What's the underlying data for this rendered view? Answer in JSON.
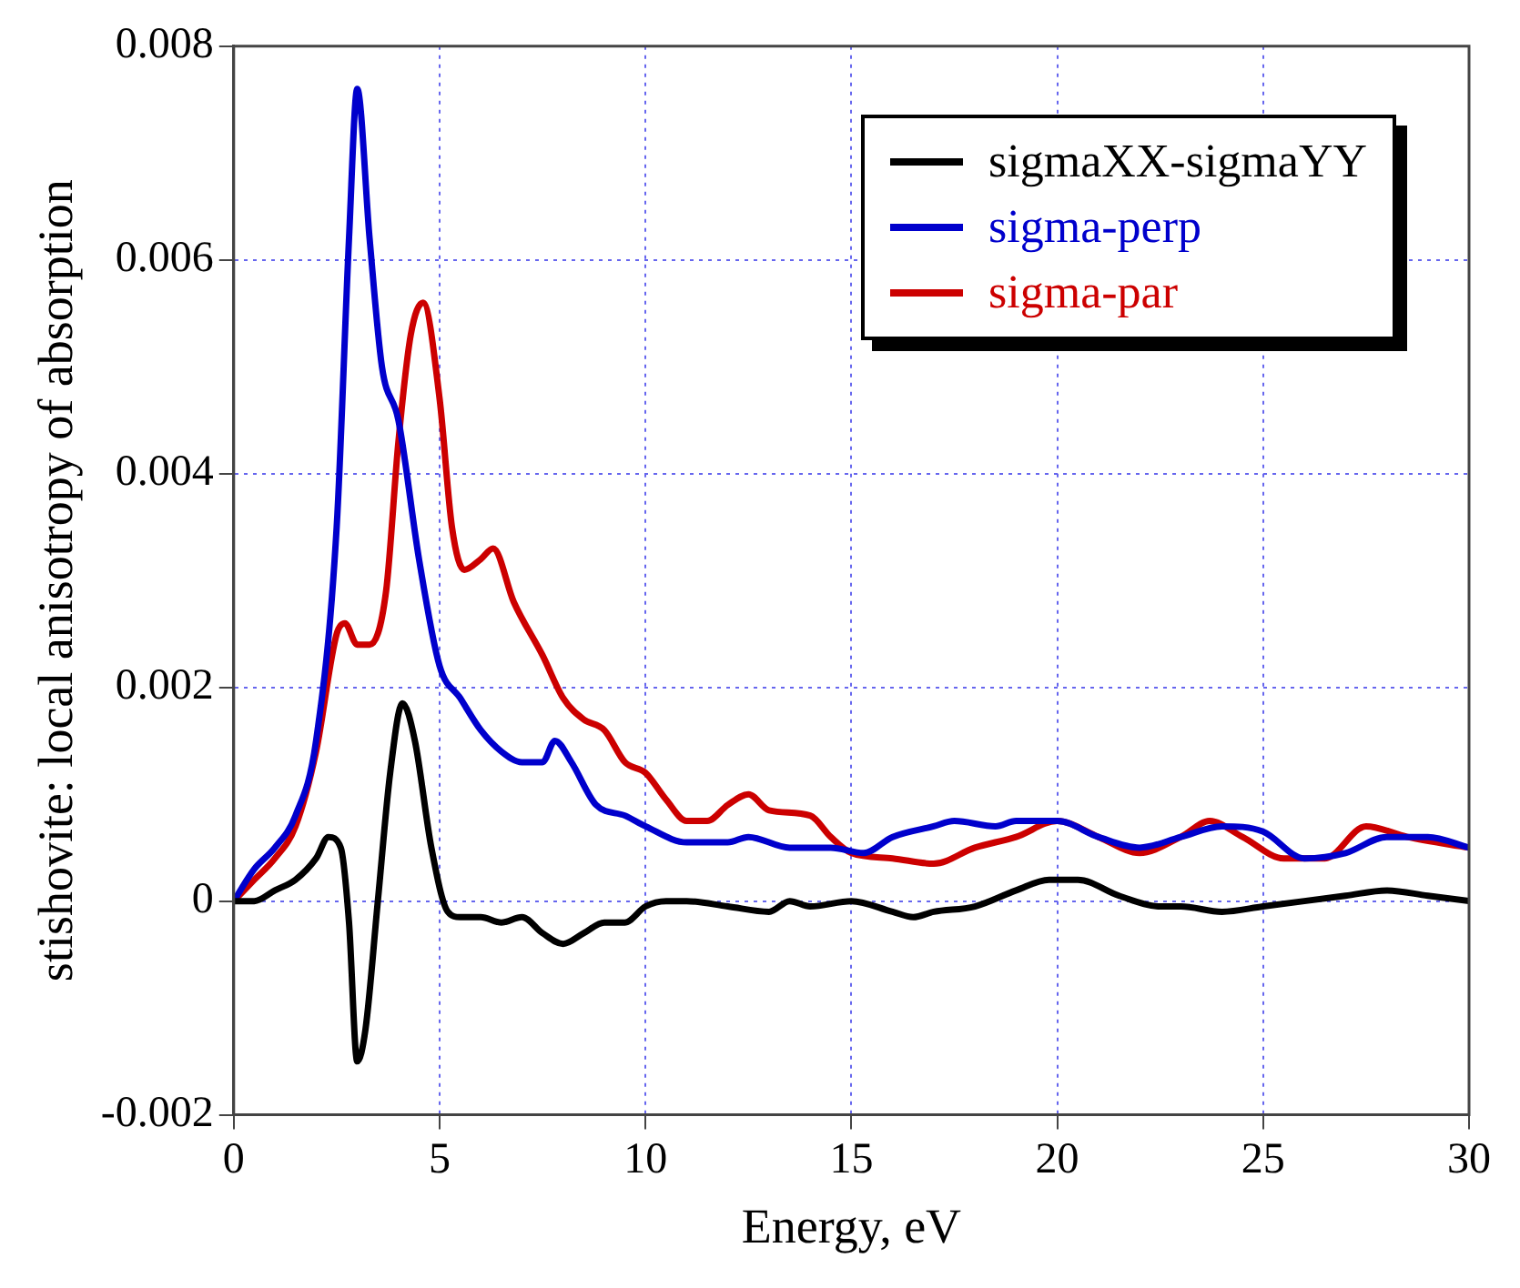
{
  "chart_data": {
    "type": "line",
    "xlabel": "Energy, eV",
    "ylabel": "stishovite: local anisotropy of absorption",
    "xlim": [
      0,
      30
    ],
    "xticks": [
      0,
      5,
      10,
      15,
      20,
      25,
      30
    ],
    "ylim": [
      -0.002,
      0.008
    ],
    "yticks": [
      -0.002,
      0,
      0.002,
      0.004,
      0.006,
      0.008
    ],
    "grid": true,
    "legend": "top right",
    "marker": "none",
    "line_style": "solid",
    "series": [
      {
        "name": "sigmaXX-sigmaYY",
        "color": "#000000",
        "x": [
          0,
          0.5,
          1,
          1.5,
          2,
          2.3,
          2.6,
          2.8,
          3,
          3.2,
          3.5,
          3.8,
          4.1,
          4.4,
          4.8,
          5.2,
          5.5,
          6,
          6.5,
          7,
          7.5,
          8,
          8.5,
          9,
          9.5,
          10,
          10.5,
          11,
          12,
          13,
          13.5,
          14,
          15,
          16,
          16.5,
          17,
          18,
          19,
          19.8,
          20.5,
          21.5,
          22.5,
          23,
          24,
          25,
          26,
          27,
          28,
          29,
          30
        ],
        "values": [
          0,
          0,
          0.0001,
          0.0002,
          0.0004,
          0.0006,
          0.0005,
          -0.0002,
          -0.0015,
          -0.0012,
          0,
          0.0012,
          0.00185,
          0.0015,
          0.0005,
          -0.0001,
          -0.00015,
          -0.00015,
          -0.0002,
          -0.00015,
          -0.0003,
          -0.0004,
          -0.0003,
          -0.0002,
          -0.0002,
          -5e-05,
          0,
          0,
          -5e-05,
          -0.0001,
          0,
          -5e-05,
          0,
          -0.0001,
          -0.00015,
          -0.0001,
          -5e-05,
          0.0001,
          0.0002,
          0.0002,
          5e-05,
          -5e-05,
          -5e-05,
          -0.0001,
          -5e-05,
          0,
          5e-05,
          0.0001,
          5e-05,
          0
        ]
      },
      {
        "name": "sigma-perp",
        "color": "#0000cc",
        "x": [
          0,
          0.5,
          1,
          1.5,
          2,
          2.5,
          2.8,
          3,
          3.3,
          3.6,
          4,
          4.5,
          5,
          5.5,
          6,
          6.5,
          7,
          7.5,
          7.8,
          8.2,
          8.8,
          9.5,
          10,
          11,
          12,
          12.5,
          13.5,
          14.5,
          15.3,
          16,
          17,
          17.5,
          18.5,
          19,
          20,
          21,
          22,
          23,
          24,
          25,
          26,
          27,
          28,
          29,
          30
        ],
        "values": [
          0,
          0.0003,
          0.0005,
          0.0008,
          0.0015,
          0.0035,
          0.0062,
          0.0076,
          0.0062,
          0.005,
          0.0045,
          0.0032,
          0.0022,
          0.0019,
          0.0016,
          0.0014,
          0.0013,
          0.0013,
          0.0015,
          0.0013,
          0.0009,
          0.0008,
          0.0007,
          0.00055,
          0.00055,
          0.0006,
          0.0005,
          0.0005,
          0.00045,
          0.0006,
          0.0007,
          0.00075,
          0.0007,
          0.00075,
          0.00075,
          0.0006,
          0.0005,
          0.0006,
          0.0007,
          0.00065,
          0.0004,
          0.00045,
          0.0006,
          0.0006,
          0.0005
        ]
      },
      {
        "name": "sigma-par",
        "color": "#cc0000",
        "x": [
          0,
          0.5,
          1,
          1.5,
          2,
          2.5,
          2.7,
          3,
          3.3,
          3.7,
          4,
          4.3,
          4.6,
          5,
          5.3,
          5.6,
          6,
          6.3,
          6.8,
          7.5,
          8,
          8.5,
          9,
          9.5,
          10,
          10.5,
          11,
          11.5,
          12,
          12.5,
          13,
          14,
          14.5,
          15,
          16,
          17,
          18,
          19,
          20,
          21,
          22,
          23,
          23.7,
          24.5,
          25.5,
          26.5,
          27.5,
          28.5,
          30
        ],
        "values": [
          0,
          0.0002,
          0.0004,
          0.0007,
          0.0014,
          0.0025,
          0.0026,
          0.0024,
          0.0024,
          0.0029,
          0.0043,
          0.0053,
          0.0056,
          0.0047,
          0.0035,
          0.0031,
          0.0032,
          0.0033,
          0.0028,
          0.0023,
          0.0019,
          0.0017,
          0.0016,
          0.0013,
          0.0012,
          0.00095,
          0.00075,
          0.00075,
          0.0009,
          0.001,
          0.00085,
          0.0008,
          0.0006,
          0.00045,
          0.0004,
          0.00035,
          0.0005,
          0.0006,
          0.00075,
          0.0006,
          0.00045,
          0.0006,
          0.00075,
          0.0006,
          0.0004,
          0.0004,
          0.0007,
          0.0006,
          0.0005
        ]
      }
    ]
  }
}
